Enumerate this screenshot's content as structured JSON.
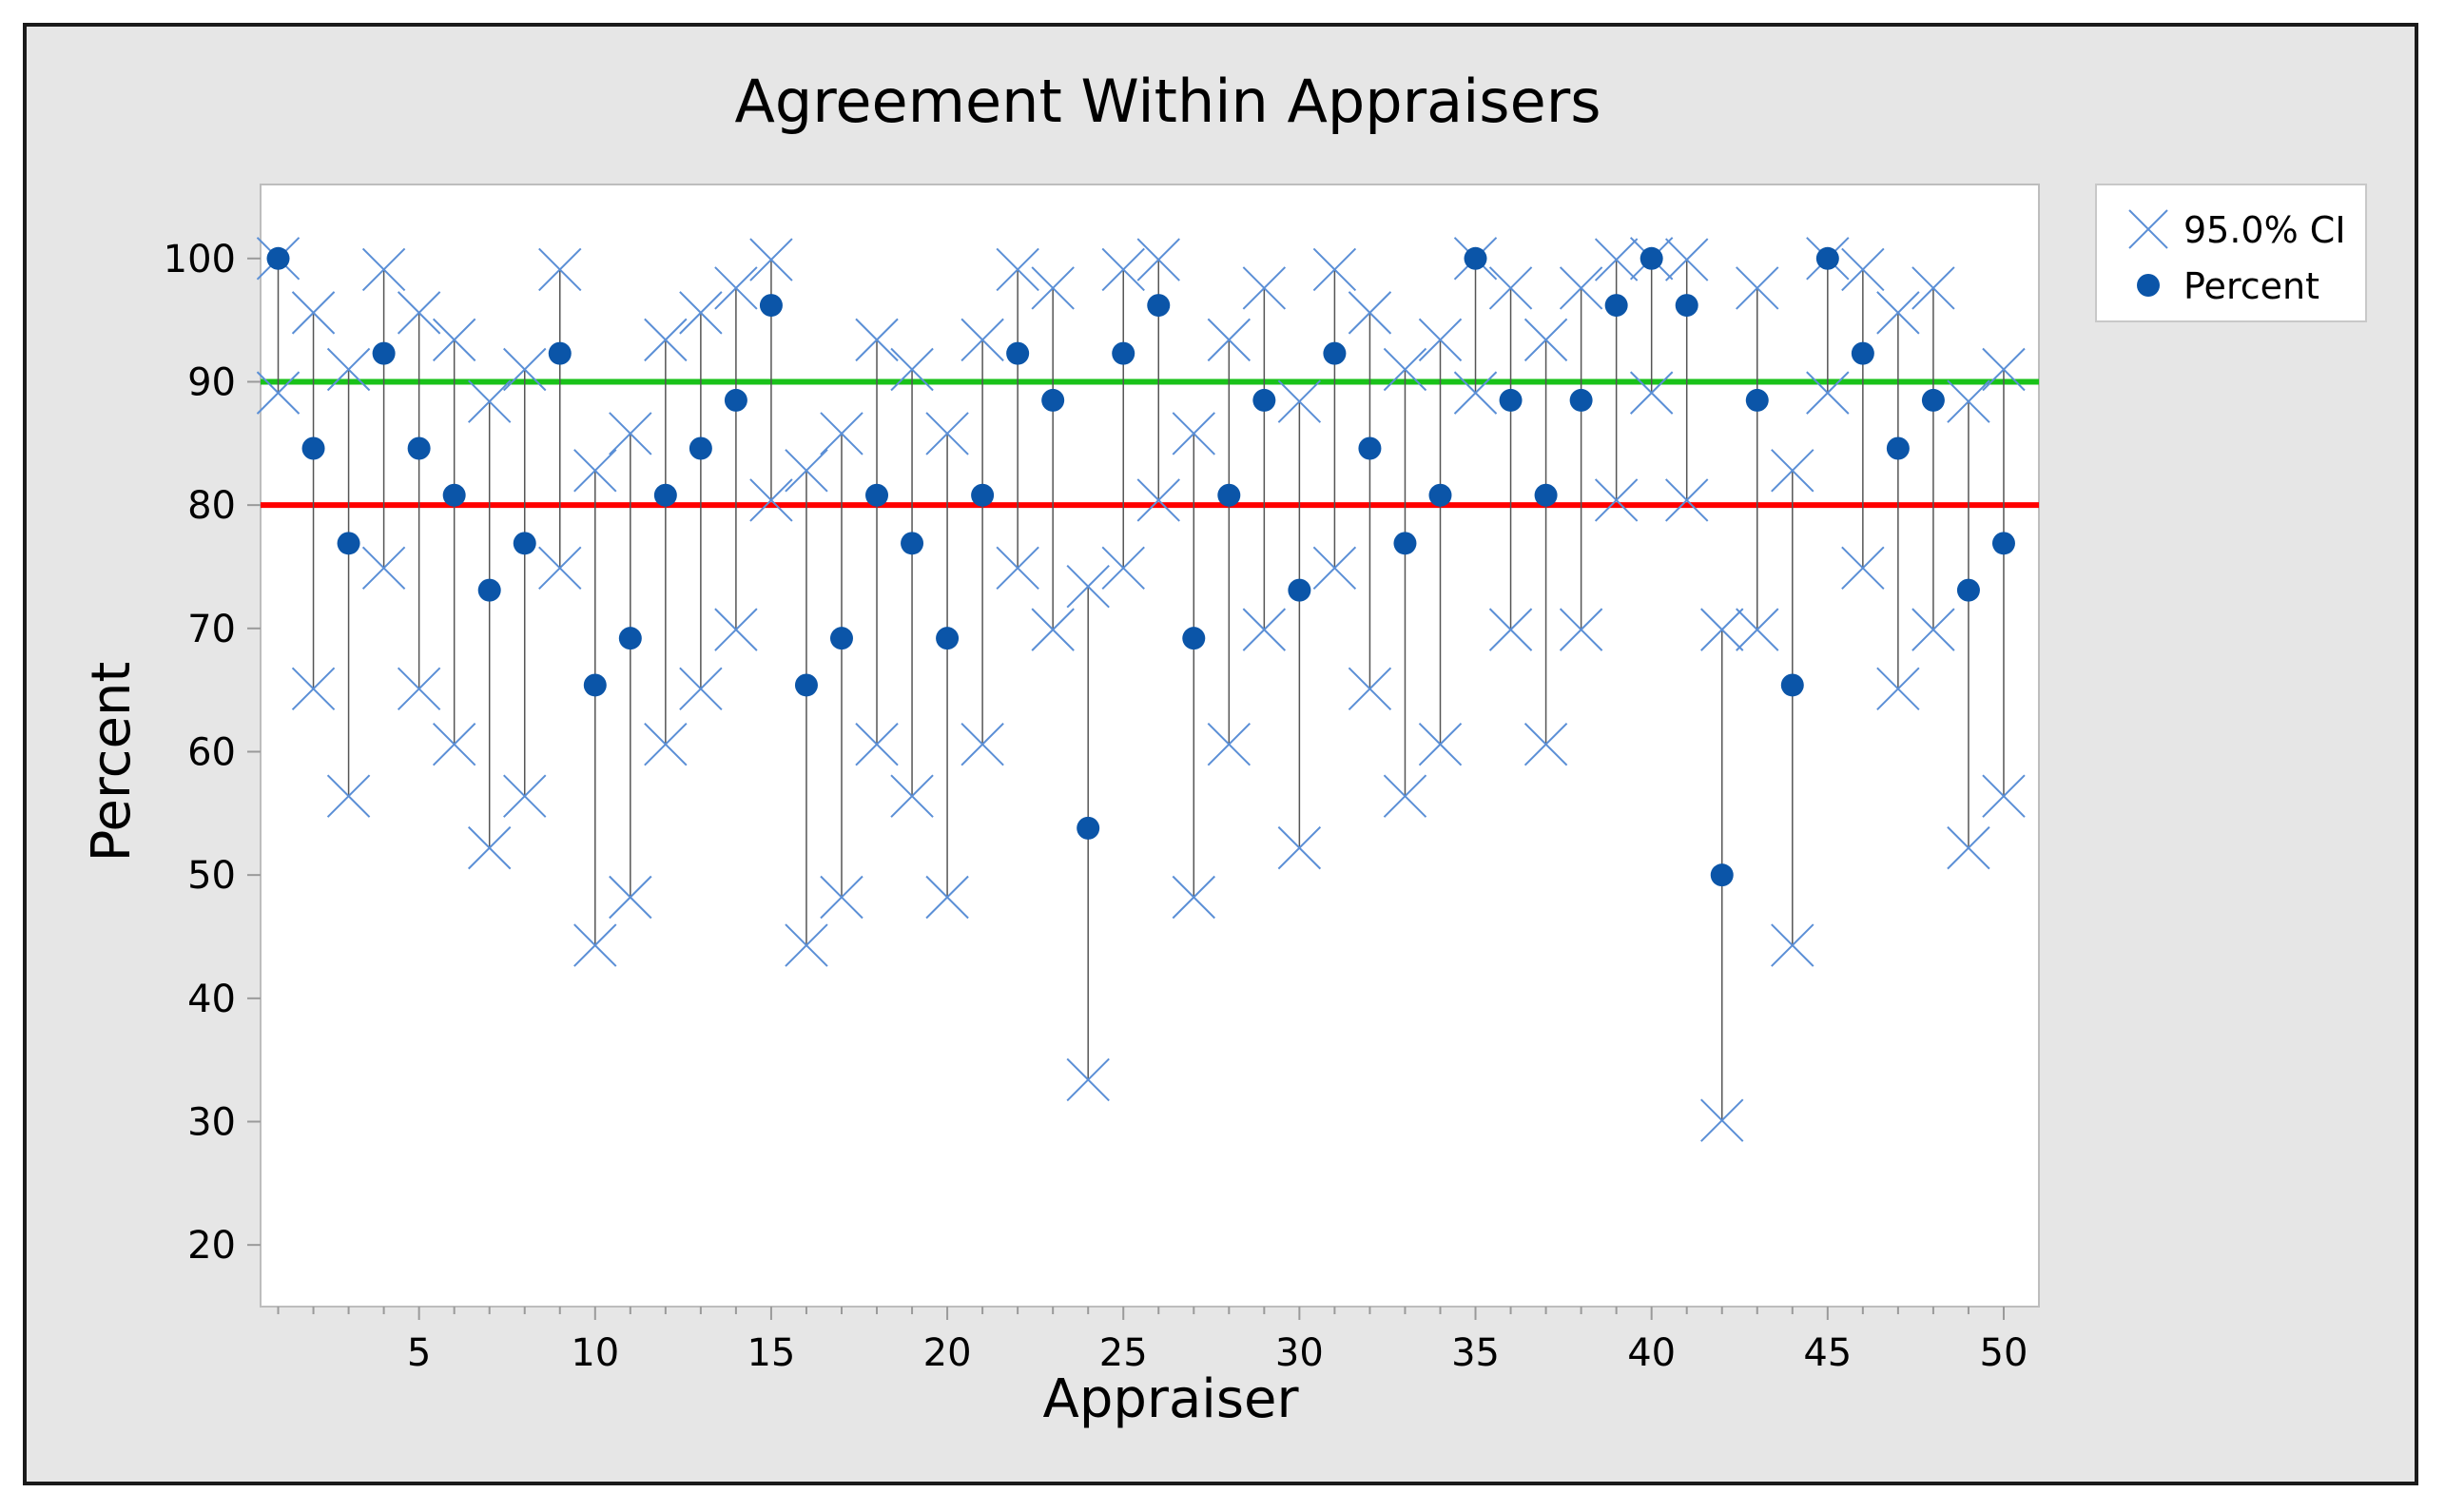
{
  "chart_data": {
    "type": "scatter",
    "title": "Agreement Within Appraisers",
    "xlabel": "Appraiser",
    "ylabel": "Percent",
    "xlim": [
      0.5,
      51
    ],
    "ylim": [
      15,
      106
    ],
    "x_ticks": [
      5,
      10,
      15,
      20,
      25,
      30,
      35,
      40,
      45,
      50
    ],
    "y_ticks": [
      20,
      30,
      40,
      50,
      60,
      70,
      80,
      90,
      100
    ],
    "grid": false,
    "legend_position": "top-right",
    "legend": [
      {
        "label": "95.0% CI",
        "marker": "x",
        "color": "#5b8fd6"
      },
      {
        "label": "Percent",
        "marker": "dot",
        "color": "#0b55a8"
      }
    ],
    "reference_lines": [
      {
        "y": 90,
        "color": "#19c219"
      },
      {
        "y": 80,
        "color": "#ff0000"
      }
    ],
    "x": [
      1,
      2,
      3,
      4,
      5,
      6,
      7,
      8,
      9,
      10,
      11,
      12,
      13,
      14,
      15,
      16,
      17,
      18,
      19,
      20,
      21,
      22,
      23,
      24,
      25,
      26,
      27,
      28,
      29,
      30,
      31,
      32,
      33,
      34,
      35,
      36,
      37,
      38,
      39,
      40,
      41,
      42,
      43,
      44,
      45,
      46,
      47,
      48,
      49,
      50
    ],
    "series": [
      {
        "name": "Percent",
        "values": [
          100,
          84.6,
          76.9,
          92.3,
          84.6,
          80.8,
          73.1,
          76.9,
          92.3,
          65.4,
          69.2,
          80.8,
          84.6,
          88.5,
          96.2,
          65.4,
          69.2,
          80.8,
          76.9,
          69.2,
          80.8,
          92.3,
          88.5,
          53.8,
          92.3,
          96.2,
          69.2,
          80.8,
          88.5,
          73.1,
          92.3,
          84.6,
          76.9,
          80.8,
          100,
          88.5,
          80.8,
          88.5,
          96.2,
          100,
          96.2,
          50,
          88.5,
          65.4,
          100,
          92.3,
          84.6,
          88.5,
          73.1,
          76.9
        ]
      },
      {
        "name": "95.0% CI",
        "lower": [
          89.1,
          65.1,
          56.4,
          74.9,
          65.1,
          60.6,
          52.2,
          56.4,
          74.9,
          44.3,
          48.2,
          60.6,
          65.1,
          69.9,
          80.4,
          44.3,
          48.2,
          60.6,
          56.4,
          48.2,
          60.6,
          74.9,
          69.9,
          33.4,
          74.9,
          80.4,
          48.2,
          60.6,
          69.9,
          52.2,
          74.9,
          65.1,
          56.4,
          60.6,
          89.1,
          69.9,
          60.6,
          69.9,
          80.4,
          89.1,
          80.4,
          30.1,
          69.9,
          44.3,
          89.1,
          74.9,
          65.1,
          69.9,
          52.2,
          56.4
        ],
        "upper": [
          100,
          95.6,
          91.0,
          99.1,
          95.6,
          93.4,
          88.4,
          91.0,
          99.1,
          82.8,
          85.8,
          93.4,
          95.6,
          97.6,
          99.9,
          82.8,
          85.8,
          93.4,
          91.0,
          85.8,
          93.4,
          99.1,
          97.6,
          73.4,
          99.1,
          99.9,
          85.8,
          93.4,
          97.6,
          88.4,
          99.1,
          95.6,
          91.0,
          93.4,
          100,
          97.6,
          93.4,
          97.6,
          99.9,
          100,
          99.9,
          69.9,
          97.6,
          82.8,
          100,
          99.1,
          95.6,
          97.6,
          88.4,
          91.0
        ]
      }
    ]
  }
}
